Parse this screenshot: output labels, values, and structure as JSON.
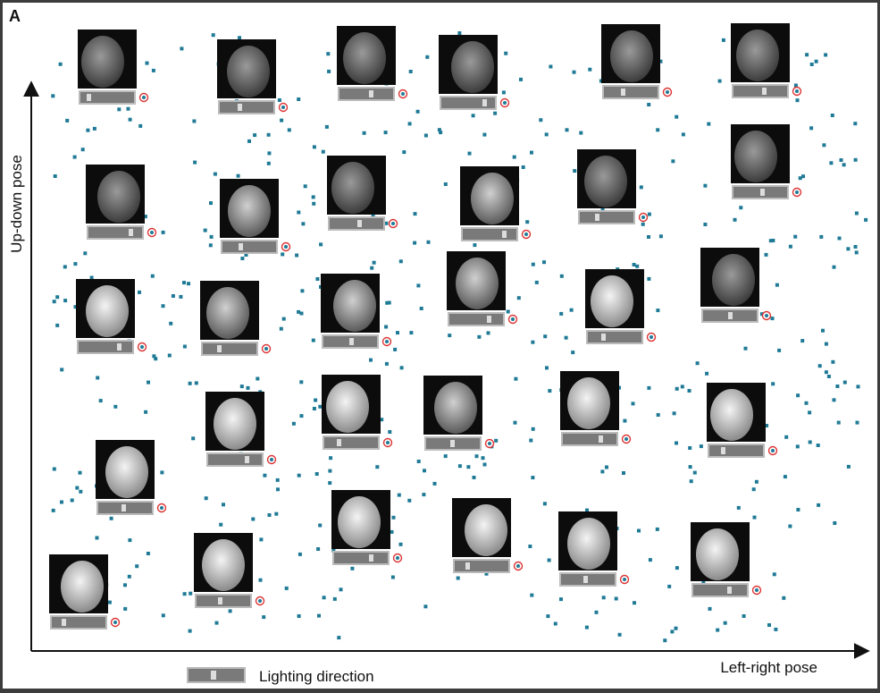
{
  "figure": {
    "panel_label": "A",
    "y_axis_label": "Up-down pose",
    "x_axis_label": "Left-right pose",
    "legend_label": "Lighting direction"
  }
}
